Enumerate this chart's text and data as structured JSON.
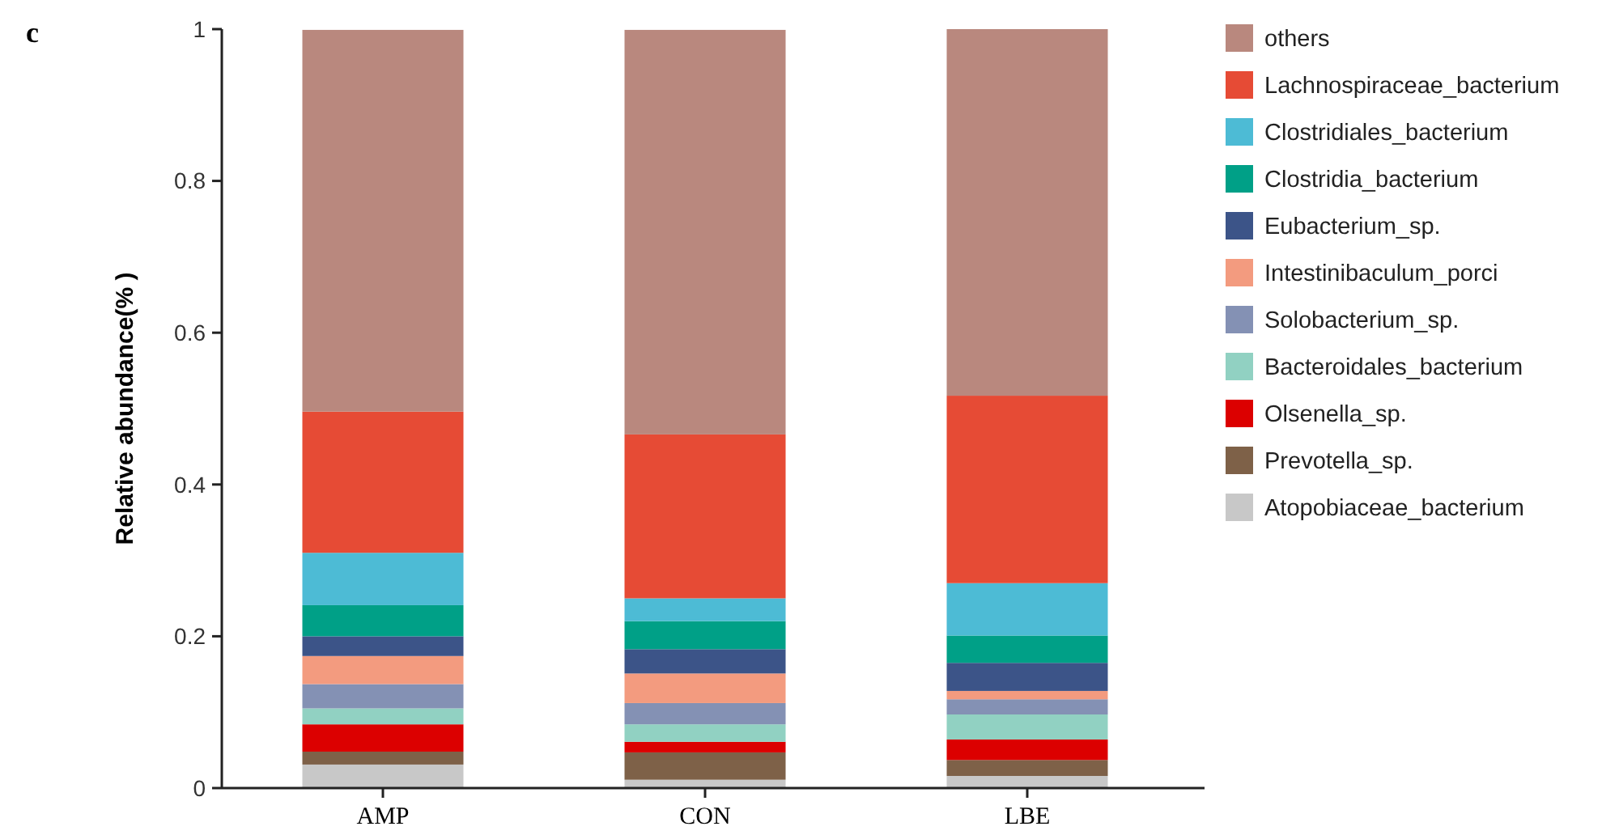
{
  "chart_data": {
    "type": "bar",
    "title": "c",
    "ylabel": "Relative abundance(% )",
    "categories": [
      "AMP",
      "CON",
      "LBE"
    ],
    "stacked": true,
    "ylim": [
      0,
      1
    ],
    "yticks": [
      0,
      0.2,
      0.4,
      0.6,
      0.8,
      1
    ],
    "legend": "right",
    "grid": false,
    "series": [
      {
        "name": "Atopobiaceae_bacterium",
        "color": "#c8c8c8",
        "values": [
          0.031,
          0.011,
          0.016
        ]
      },
      {
        "name": "Prevotella_sp.",
        "color": "#7e6148",
        "values": [
          0.017,
          0.036,
          0.021
        ]
      },
      {
        "name": "Olsenella_sp.",
        "color": "#dc0000",
        "values": [
          0.036,
          0.014,
          0.027
        ]
      },
      {
        "name": "Bacteroidales_bacterium",
        "color": "#91d1c2",
        "values": [
          0.021,
          0.023,
          0.033
        ]
      },
      {
        "name": "Solobacterium_sp.",
        "color": "#8491b4",
        "values": [
          0.032,
          0.028,
          0.02
        ]
      },
      {
        "name": "Intestinibaculum_porci",
        "color": "#f39b7f",
        "values": [
          0.037,
          0.039,
          0.011
        ]
      },
      {
        "name": "Eubacterium_sp.",
        "color": "#3c5488",
        "values": [
          0.026,
          0.032,
          0.037
        ]
      },
      {
        "name": "Clostridia_bacterium",
        "color": "#00a087",
        "values": [
          0.041,
          0.037,
          0.036
        ]
      },
      {
        "name": "Clostridiales_bacterium",
        "color": "#4dbbd5",
        "values": [
          0.069,
          0.03,
          0.069
        ]
      },
      {
        "name": "Lachnospiraceae_bacterium",
        "color": "#e64b35",
        "values": [
          0.186,
          0.216,
          0.247
        ]
      },
      {
        "name": "others",
        "color": "#b9887e",
        "values": [
          0.503,
          0.533,
          0.483
        ]
      }
    ]
  }
}
